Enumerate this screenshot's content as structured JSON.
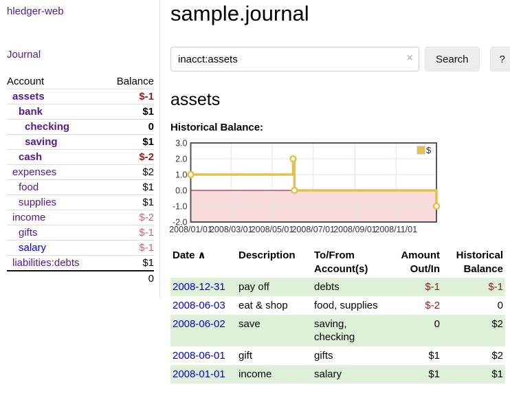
{
  "colors": {
    "link_purple": "#551a8b",
    "link_blue": "#0000cc",
    "negative_strong": "#8e1f1f",
    "negative_faded": "#c0696f",
    "row_stripe_green": "#dff0d8",
    "accent_gold": "#e5c04a"
  },
  "sidebar": {
    "brand": "hledger-web",
    "nav": {
      "journal": "Journal"
    },
    "accounts_table": {
      "headers": {
        "account": "Account",
        "balance": "Balance"
      },
      "rows": [
        {
          "name": "assets",
          "depth": 0,
          "bold": true,
          "link": "purple",
          "balance": "$-1",
          "balance_style": "neg-strong"
        },
        {
          "name": "bank",
          "depth": 1,
          "bold": true,
          "link": "purple",
          "balance": "$1",
          "balance_style": "pos"
        },
        {
          "name": "checking",
          "depth": 2,
          "bold": true,
          "link": "purple",
          "balance": "0",
          "balance_style": "pos"
        },
        {
          "name": "saving",
          "depth": 2,
          "bold": true,
          "link": "purple",
          "balance": "$1",
          "balance_style": "pos"
        },
        {
          "name": "cash",
          "depth": 1,
          "bold": true,
          "link": "purple",
          "balance": "$-2",
          "balance_style": "neg-strong"
        },
        {
          "name": "expenses",
          "depth": 0,
          "bold": false,
          "link": "purple",
          "balance": "$2",
          "balance_style": "pos"
        },
        {
          "name": "food",
          "depth": 1,
          "bold": false,
          "link": "purple",
          "balance": "$1",
          "balance_style": "pos"
        },
        {
          "name": "supplies",
          "depth": 1,
          "bold": false,
          "link": "purple",
          "balance": "$1",
          "balance_style": "pos"
        },
        {
          "name": "income",
          "depth": 0,
          "bold": false,
          "link": "purple",
          "balance": "$-2",
          "balance_style": "neg-faded"
        },
        {
          "name": "gifts",
          "depth": 1,
          "bold": false,
          "link": "purple",
          "balance": "$-1",
          "balance_style": "neg-faded"
        },
        {
          "name": "salary",
          "depth": 1,
          "bold": false,
          "link": "blue",
          "balance": "$-1",
          "balance_style": "neg-faded"
        },
        {
          "name": "liabilities:debts",
          "depth": 0,
          "bold": false,
          "link": "purple",
          "balance": "$1",
          "balance_style": "pos"
        }
      ],
      "total": "0"
    }
  },
  "main": {
    "title": "sample.journal",
    "search": {
      "value": "inacct:assets",
      "clear_icon": "×",
      "button": "Search",
      "help_button": "?"
    },
    "account_heading": "assets",
    "chart_heading": "Historical Balance:"
  },
  "chart_data": {
    "type": "line",
    "title": "Historical Balance:",
    "legend": {
      "label": "$",
      "position": "top-right"
    },
    "grid": true,
    "ylim": [
      -2,
      3
    ],
    "xlim_days": [
      0,
      365
    ],
    "y_ticks": [
      3.0,
      2.0,
      1.0,
      0.0,
      -1.0,
      -2.0
    ],
    "x_ticks": [
      {
        "day": 0,
        "label": "2008/01/01"
      },
      {
        "day": 60,
        "label": "2008/03/01"
      },
      {
        "day": 121,
        "label": "2008/05/01"
      },
      {
        "day": 182,
        "label": "2008/07/01"
      },
      {
        "day": 244,
        "label": "2008/09/01"
      },
      {
        "day": 305,
        "label": "2008/11/01"
      }
    ],
    "series": [
      {
        "name": "$",
        "step": true,
        "points": [
          {
            "date": "2008-01-01",
            "day": 0,
            "value": 1
          },
          {
            "date": "2008-06-01",
            "day": 152,
            "value": 2
          },
          {
            "date": "2008-06-03",
            "day": 154,
            "value": 0
          },
          {
            "date": "2008-12-31",
            "day": 365,
            "value": -1
          }
        ]
      }
    ],
    "colors": {
      "line": "#e5c04a",
      "marker_fill": "#ffffff",
      "negative_region": "#f9dbdb",
      "zero_line": "#8b0000",
      "border": "#555555",
      "grid": "#e3e3e3"
    }
  },
  "register_table": {
    "sort_asc_icon": "∧",
    "headers": [
      {
        "line1": "Date",
        "line2": "",
        "align": "left",
        "sorted": true
      },
      {
        "line1": "Description",
        "line2": "",
        "align": "left"
      },
      {
        "line1": "To/From",
        "line2": "Account(s)",
        "align": "left"
      },
      {
        "line1": "Amount",
        "line2": "Out/In",
        "align": "right"
      },
      {
        "line1": "Historical",
        "line2": "Balance",
        "align": "right"
      }
    ],
    "rows": [
      {
        "date": "2008-12-31",
        "description": "pay off",
        "accounts": "debts",
        "amount": "$-1",
        "amount_style": "neg-strong",
        "balance": "$-1",
        "balance_style": "neg-strong"
      },
      {
        "date": "2008-06-03",
        "description": "eat & shop",
        "accounts": "food, supplies",
        "amount": "$-2",
        "amount_style": "neg-strong",
        "balance": "0",
        "balance_style": "pos"
      },
      {
        "date": "2008-06-02",
        "description": "save",
        "accounts": "saving,\nchecking",
        "amount": "0",
        "amount_style": "pos",
        "balance": "$2",
        "balance_style": "pos"
      },
      {
        "date": "2008-06-01",
        "description": "gift",
        "accounts": "gifts",
        "amount": "$1",
        "amount_style": "pos",
        "balance": "$2",
        "balance_style": "pos"
      },
      {
        "date": "2008-01-01",
        "description": "income",
        "accounts": "salary",
        "amount": "$1",
        "amount_style": "pos",
        "balance": "$1",
        "balance_style": "pos"
      }
    ]
  }
}
